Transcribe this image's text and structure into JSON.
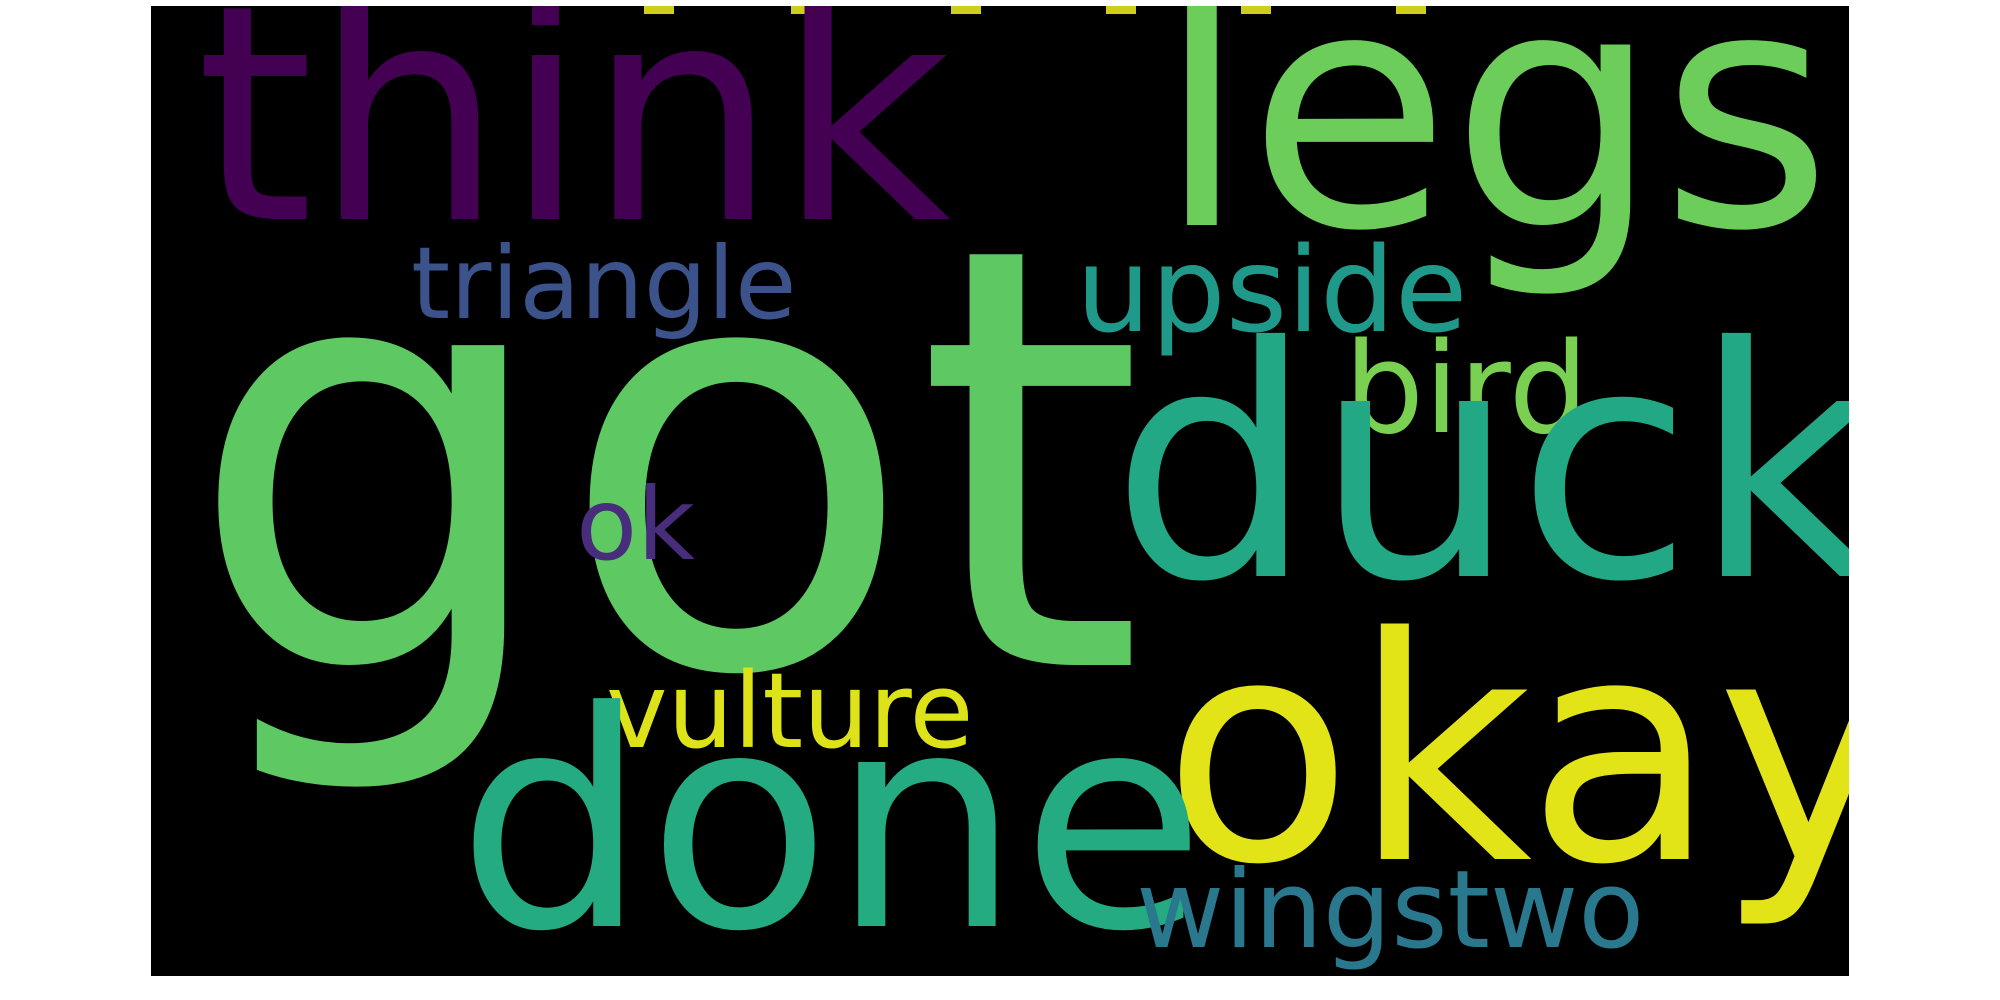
{
  "wordcloud": {
    "words": [
      {
        "text": "got",
        "color": "#5ec962"
      },
      {
        "text": "think",
        "color": "#440154"
      },
      {
        "text": "legs",
        "color": "#6ccd5a"
      },
      {
        "text": "duck",
        "color": "#22a884"
      },
      {
        "text": "okay",
        "color": "#e2e418"
      },
      {
        "text": "done",
        "color": "#25ab82"
      },
      {
        "text": "upside",
        "color": "#1f9a8a"
      },
      {
        "text": "triangle",
        "color": "#3b528b"
      },
      {
        "text": "bird",
        "color": "#7ad151"
      },
      {
        "text": "ok",
        "color": "#472d7b"
      },
      {
        "text": "vulture",
        "color": "#dde318"
      },
      {
        "text": "wingstwo",
        "color": "#2a788e"
      }
    ]
  }
}
